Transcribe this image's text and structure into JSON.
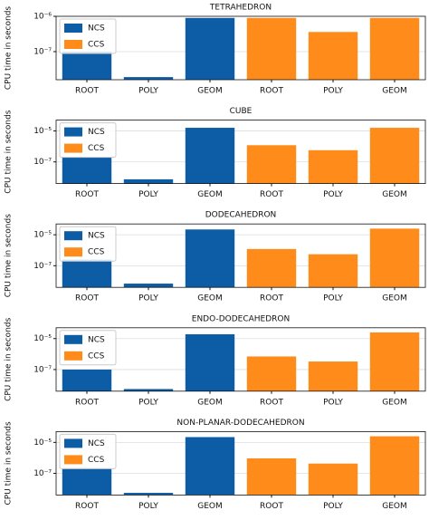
{
  "chart_data": [
    {
      "type": "bar",
      "title": "TETRAHEDRON",
      "ylabel": "CPU time in seconds",
      "log_scale": true,
      "grid": true,
      "legend": "upper left",
      "categories": [
        "ROOT",
        "POLY",
        "GEOM",
        "ROOT",
        "POLY",
        "GEOM"
      ],
      "series": [
        {
          "name": "NCS",
          "color": "#0c5da5",
          "values": [
            1e-07,
            1.9e-08,
            9e-07,
            null,
            null,
            null
          ]
        },
        {
          "name": "CCS",
          "color": "#ff8c1a",
          "values": [
            null,
            null,
            null,
            9e-07,
            3.6e-07,
            9e-07
          ]
        }
      ],
      "ylim": [
        1.6e-08,
        1e-06
      ],
      "yticks": [
        {
          "value": 1e-07,
          "label": "10⁻⁷"
        },
        {
          "value": 1e-06,
          "label": "10⁻⁶"
        }
      ]
    },
    {
      "type": "bar",
      "title": "CUBE",
      "ylabel": "CPU time in seconds",
      "log_scale": true,
      "grid": true,
      "legend": "upper left",
      "categories": [
        "ROOT",
        "POLY",
        "GEOM",
        "ROOT",
        "POLY",
        "GEOM"
      ],
      "series": [
        {
          "name": "NCS",
          "color": "#0c5da5",
          "values": [
            1.9e-07,
            7.5e-09,
            1.6e-05,
            null,
            null,
            null
          ]
        },
        {
          "name": "CCS",
          "color": "#ff8c1a",
          "values": [
            null,
            null,
            null,
            1.2e-06,
            5.7e-07,
            1.6e-05
          ]
        }
      ],
      "ylim": [
        4e-09,
        5e-05
      ],
      "yticks": [
        {
          "value": 1e-07,
          "label": "10⁻⁷"
        },
        {
          "value": 1e-05,
          "label": "10⁻⁵"
        }
      ]
    },
    {
      "type": "bar",
      "title": "DODECAHEDRON",
      "ylabel": "CPU time in seconds",
      "log_scale": true,
      "grid": true,
      "legend": "upper left",
      "categories": [
        "ROOT",
        "POLY",
        "GEOM",
        "ROOT",
        "POLY",
        "GEOM"
      ],
      "series": [
        {
          "name": "NCS",
          "color": "#0c5da5",
          "values": [
            2.5e-07,
            7e-09,
            2.2e-05,
            null,
            null,
            null
          ]
        },
        {
          "name": "CCS",
          "color": "#ff8c1a",
          "values": [
            null,
            null,
            null,
            1.2e-06,
            5.5e-07,
            2.5e-05
          ]
        }
      ],
      "ylim": [
        4e-09,
        5e-05
      ],
      "yticks": [
        {
          "value": 1e-07,
          "label": "10⁻⁷"
        },
        {
          "value": 1e-05,
          "label": "10⁻⁵"
        }
      ]
    },
    {
      "type": "bar",
      "title": "ENDO-DODECAHEDRON",
      "ylabel": "CPU time in seconds",
      "log_scale": true,
      "grid": true,
      "legend": "upper left",
      "categories": [
        "ROOT",
        "POLY",
        "GEOM",
        "ROOT",
        "POLY",
        "GEOM"
      ],
      "series": [
        {
          "name": "NCS",
          "color": "#0c5da5",
          "values": [
            1e-07,
            5.5e-09,
            1.9e-05,
            null,
            null,
            null
          ]
        },
        {
          "name": "CCS",
          "color": "#ff8c1a",
          "values": [
            null,
            null,
            null,
            7e-07,
            3.3e-07,
            2.5e-05
          ]
        }
      ],
      "ylim": [
        4e-09,
        5e-05
      ],
      "yticks": [
        {
          "value": 1e-07,
          "label": "10⁻⁷"
        },
        {
          "value": 1e-05,
          "label": "10⁻⁵"
        }
      ]
    },
    {
      "type": "bar",
      "title": "NON-PLANAR-DODECAHEDRON",
      "ylabel": "CPU time in seconds",
      "log_scale": true,
      "grid": true,
      "legend": "upper left",
      "categories": [
        "ROOT",
        "POLY",
        "GEOM",
        "ROOT",
        "POLY",
        "GEOM"
      ],
      "series": [
        {
          "name": "NCS",
          "color": "#0c5da5",
          "values": [
            2.2e-07,
            5.5e-09,
            2.2e-05,
            null,
            null,
            null
          ]
        },
        {
          "name": "CCS",
          "color": "#ff8c1a",
          "values": [
            null,
            null,
            null,
            9.3e-07,
            4.3e-07,
            2.5e-05
          ]
        }
      ],
      "ylim": [
        4e-09,
        5e-05
      ],
      "yticks": [
        {
          "value": 1e-07,
          "label": "10⁻⁷"
        },
        {
          "value": 1e-05,
          "label": "10⁻⁵"
        }
      ]
    }
  ]
}
